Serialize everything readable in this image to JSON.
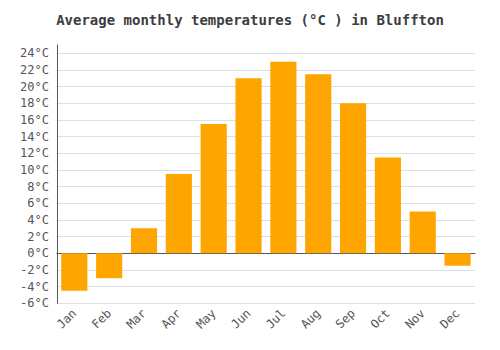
{
  "chart_data": {
    "type": "bar",
    "title": "Average monthly temperatures (°C ) in Bluffton",
    "categories": [
      "Jan",
      "Feb",
      "Mar",
      "Apr",
      "May",
      "Jun",
      "Jul",
      "Aug",
      "Sep",
      "Oct",
      "Nov",
      "Dec"
    ],
    "values": [
      -4.5,
      -3.0,
      3.0,
      9.5,
      15.5,
      21.0,
      23.0,
      21.5,
      18.0,
      11.5,
      5.0,
      -1.5
    ],
    "color": "#FFA500",
    "ylim": [
      -6,
      25
    ],
    "yticks": [
      {
        "value": -6,
        "label": "-6°C"
      },
      {
        "value": -4,
        "label": "-4°C"
      },
      {
        "value": -2,
        "label": "-2°C"
      },
      {
        "value": 0,
        "label": "0°C"
      },
      {
        "value": 2,
        "label": "2°C"
      },
      {
        "value": 4,
        "label": "4°C"
      },
      {
        "value": 6,
        "label": "6°C"
      },
      {
        "value": 8,
        "label": "8°C"
      },
      {
        "value": 10,
        "label": "10°C"
      },
      {
        "value": 12,
        "label": "12°C"
      },
      {
        "value": 14,
        "label": "14°C"
      },
      {
        "value": 16,
        "label": "16°C"
      },
      {
        "value": 18,
        "label": "18°C"
      },
      {
        "value": 20,
        "label": "20°C"
      },
      {
        "value": 22,
        "label": "22°C"
      },
      {
        "value": 24,
        "label": "24°C"
      }
    ],
    "grid": true
  }
}
